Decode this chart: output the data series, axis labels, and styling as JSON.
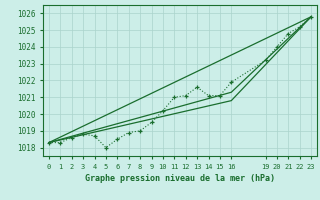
{
  "bg_color": "#cceee8",
  "grid_color": "#aad4cc",
  "line_color": "#1a6e2e",
  "xlabel": "Graphe pression niveau de la mer (hPa)",
  "ylim": [
    1017.5,
    1026.5
  ],
  "xlim": [
    -0.5,
    23.5
  ],
  "yticks": [
    1018,
    1019,
    1020,
    1021,
    1022,
    1023,
    1024,
    1025,
    1026
  ],
  "xtick_positions": [
    0,
    1,
    2,
    3,
    4,
    5,
    6,
    7,
    8,
    9,
    10,
    11,
    12,
    13,
    14,
    15,
    16,
    19,
    20,
    21,
    22,
    23
  ],
  "xtick_labels": [
    "0",
    "1",
    "2",
    "3",
    "4",
    "5",
    "6",
    "7",
    "8",
    "9",
    "10",
    "11",
    "12",
    "13",
    "14",
    "15",
    "16",
    "19",
    "20",
    "21",
    "22",
    "23"
  ],
  "main_x": [
    0,
    1,
    2,
    3,
    4,
    5,
    6,
    7,
    8,
    9,
    10,
    11,
    12,
    13,
    14,
    15,
    16,
    19,
    20,
    21,
    22,
    23
  ],
  "main_y": [
    1018.3,
    1018.3,
    1018.6,
    1018.8,
    1018.7,
    1018.0,
    1018.5,
    1018.9,
    1019.0,
    1019.5,
    1020.2,
    1021.0,
    1021.1,
    1021.6,
    1021.1,
    1021.1,
    1021.9,
    1023.2,
    1024.0,
    1024.8,
    1025.2,
    1025.8
  ],
  "trend1_x": [
    0,
    23
  ],
  "trend1_y": [
    1018.3,
    1025.8
  ],
  "trend2_x": [
    0,
    16,
    23
  ],
  "trend2_y": [
    1018.3,
    1020.8,
    1025.8
  ],
  "trend3_x": [
    0,
    16,
    23
  ],
  "trend3_y": [
    1018.3,
    1021.3,
    1025.8
  ]
}
